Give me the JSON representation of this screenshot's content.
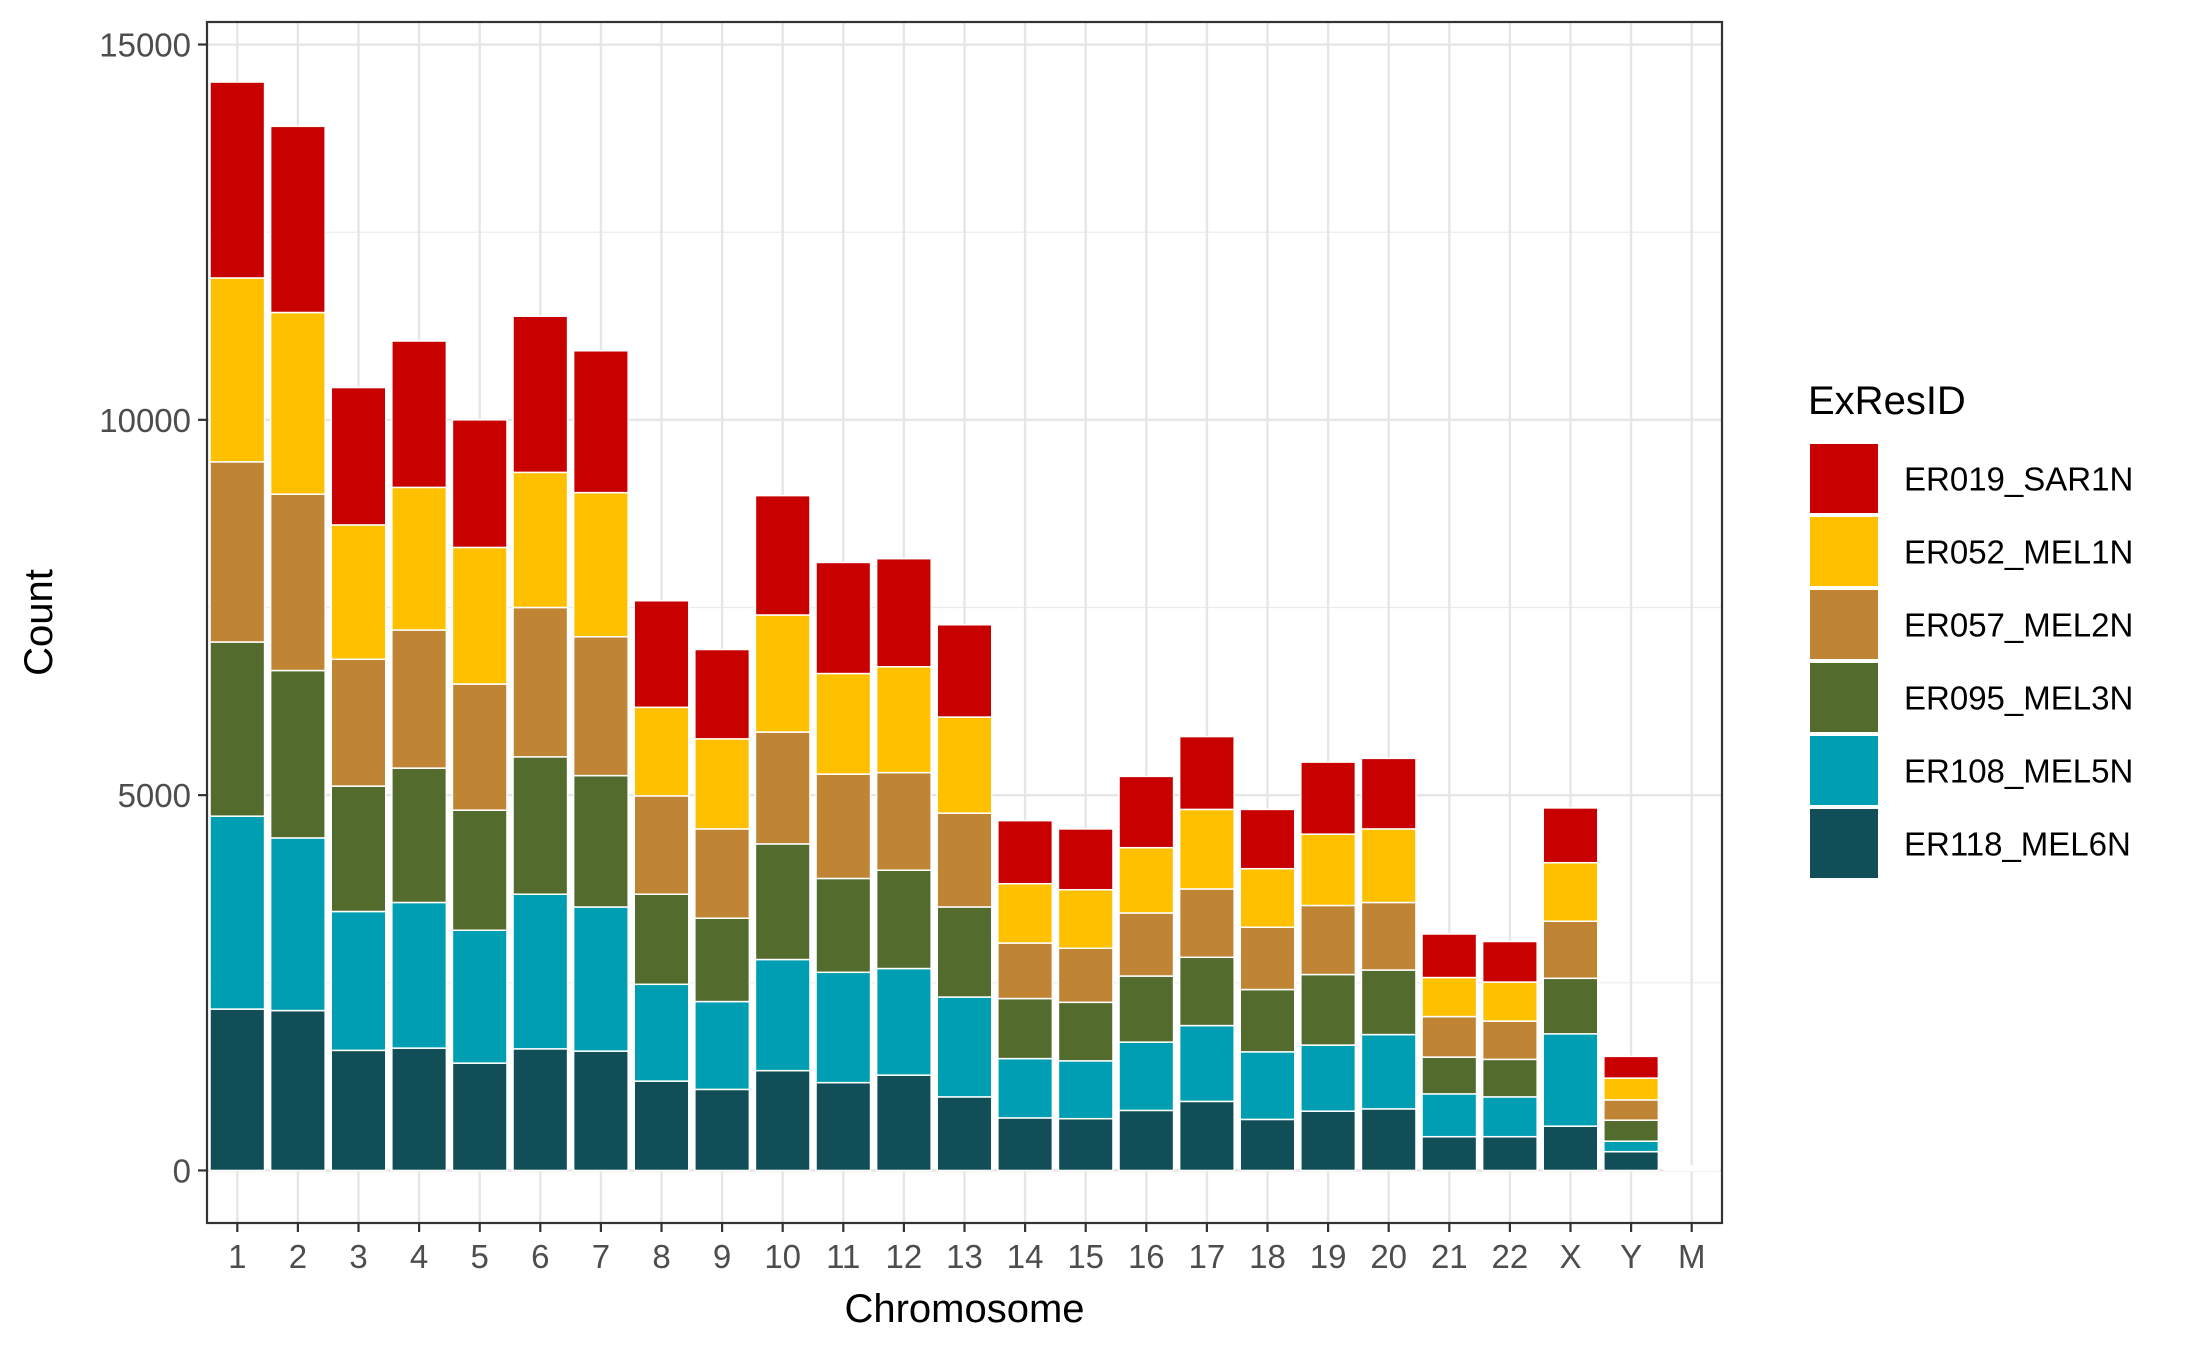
{
  "chart_data": {
    "type": "bar",
    "stacked": true,
    "xlabel": "Chromosome",
    "ylabel": "Count",
    "ylim": [
      -700,
      15300
    ],
    "yticks": [
      0,
      5000,
      10000,
      15000
    ],
    "grid": true,
    "legend": {
      "title": "ExResID",
      "position": "right"
    },
    "categories": [
      "1",
      "2",
      "3",
      "4",
      "5",
      "6",
      "7",
      "8",
      "9",
      "10",
      "11",
      "12",
      "13",
      "14",
      "15",
      "16",
      "17",
      "18",
      "19",
      "20",
      "21",
      "22",
      "X",
      "Y",
      "M"
    ],
    "series": [
      {
        "name": "ER118_MEL6N",
        "color": "#124E58",
        "values": [
          2150,
          2130,
          1600,
          1630,
          1430,
          1620,
          1590,
          1190,
          1080,
          1330,
          1170,
          1270,
          980,
          700,
          690,
          800,
          920,
          680,
          790,
          820,
          450,
          450,
          590,
          250,
          10
        ]
      },
      {
        "name": "ER108_MEL5N",
        "color": "#009EB3",
        "values": [
          2570,
          2300,
          1850,
          1940,
          1770,
          2060,
          1920,
          1290,
          1170,
          1480,
          1470,
          1420,
          1330,
          790,
          770,
          910,
          1010,
          900,
          880,
          990,
          570,
          530,
          1230,
          140,
          10
        ]
      },
      {
        "name": "ER095_MEL3N",
        "color": "#536C2E",
        "values": [
          2320,
          2230,
          1670,
          1790,
          1600,
          1830,
          1750,
          1200,
          1110,
          1540,
          1250,
          1310,
          1200,
          800,
          780,
          880,
          910,
          830,
          940,
          860,
          490,
          500,
          740,
          280,
          10
        ]
      },
      {
        "name": "ER057_MEL2N",
        "color": "#C08435",
        "values": [
          2400,
          2350,
          1690,
          1840,
          1680,
          1990,
          1850,
          1310,
          1190,
          1490,
          1390,
          1300,
          1250,
          740,
          720,
          840,
          910,
          830,
          920,
          900,
          540,
          510,
          760,
          270,
          10
        ]
      },
      {
        "name": "ER052_MEL1N",
        "color": "#FFC000",
        "values": [
          2450,
          2420,
          1790,
          1900,
          1820,
          1800,
          1920,
          1180,
          1200,
          1560,
          1340,
          1410,
          1280,
          790,
          780,
          870,
          1060,
          780,
          950,
          980,
          520,
          520,
          780,
          290,
          10
        ]
      },
      {
        "name": "ER019_SAR1N",
        "color": "#C80000",
        "values": [
          2610,
          2480,
          1830,
          1950,
          1700,
          2080,
          1890,
          1420,
          1190,
          1590,
          1480,
          1440,
          1230,
          840,
          810,
          950,
          970,
          790,
          960,
          940,
          580,
          540,
          730,
          290,
          10
        ]
      }
    ]
  }
}
